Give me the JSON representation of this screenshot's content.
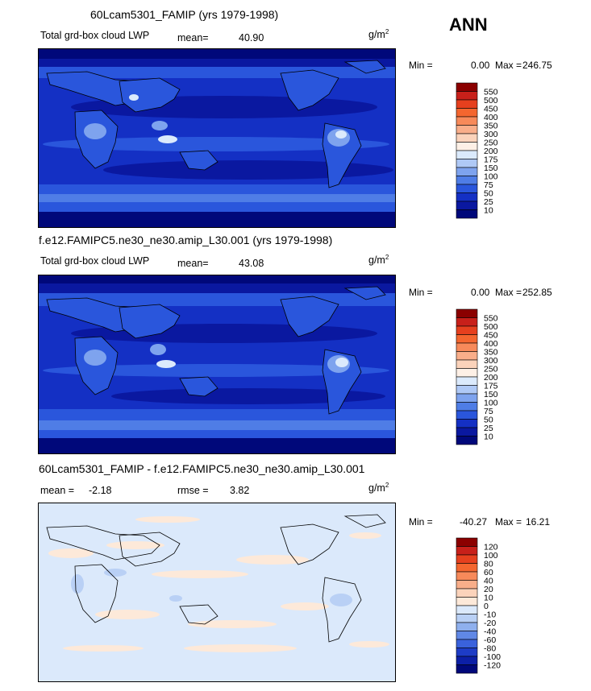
{
  "season": "ANN",
  "panels": [
    {
      "title": "60Lcam5301_FAMIP (yrs 1979-1998)",
      "variable": "Total grd-box cloud LWP",
      "mean_label": "mean=",
      "mean": "40.90",
      "units_base": "g/m",
      "units_exp": "2",
      "min_label": "Min =",
      "min": "0.00",
      "max_label": "Max =",
      "max": "246.75",
      "levels": [
        "550",
        "500",
        "450",
        "400",
        "350",
        "300",
        "250",
        "200",
        "175",
        "150",
        "100",
        "75",
        "50",
        "25",
        "10"
      ],
      "colors": [
        "#8b0000",
        "#c8201a",
        "#e6401e",
        "#f4662f",
        "#f78a5a",
        "#f9ae8a",
        "#fbd3bb",
        "#fdf0e6",
        "#dbeafc",
        "#afc9f6",
        "#7ea3ee",
        "#4f7de6",
        "#2a56dc",
        "#1430c4",
        "#0a18a0",
        "#00087a"
      ]
    },
    {
      "title": "f.e12.FAMIPC5.ne30_ne30.amip_L30.001 (yrs 1979-1998)",
      "variable": "Total grd-box cloud LWP",
      "mean_label": "mean=",
      "mean": "43.08",
      "units_base": "g/m",
      "units_exp": "2",
      "min_label": "Min =",
      "min": "0.00",
      "max_label": "Max =",
      "max": "252.85",
      "levels": [
        "550",
        "500",
        "450",
        "400",
        "350",
        "300",
        "250",
        "200",
        "175",
        "150",
        "100",
        "75",
        "50",
        "25",
        "10"
      ],
      "colors": [
        "#8b0000",
        "#c8201a",
        "#e6401e",
        "#f4662f",
        "#f78a5a",
        "#f9ae8a",
        "#fbd3bb",
        "#fdf0e6",
        "#dbeafc",
        "#afc9f6",
        "#7ea3ee",
        "#4f7de6",
        "#2a56dc",
        "#1430c4",
        "#0a18a0",
        "#00087a"
      ]
    },
    {
      "title": "60Lcam5301_FAMIP - f.e12.FAMIPC5.ne30_ne30.amip_L30.001",
      "mean_label": "mean =",
      "mean": "-2.18",
      "rmse_label": "rmse =",
      "rmse": "3.82",
      "units_base": "g/m",
      "units_exp": "2",
      "min_label": "Min =",
      "min": "-40.27",
      "max_label": "Max =",
      "max": "16.21",
      "levels": [
        "120",
        "100",
        "80",
        "60",
        "40",
        "20",
        "10",
        "0",
        "-10",
        "-20",
        "-40",
        "-60",
        "-80",
        "-100",
        "-120"
      ],
      "colors": [
        "#8b0000",
        "#c8201a",
        "#e6401e",
        "#f4662f",
        "#f78a5a",
        "#f9ae8a",
        "#fbd3bb",
        "#fde9d9",
        "#dbe9fb",
        "#b9d0f5",
        "#8fb0ee",
        "#6088e6",
        "#3a62dc",
        "#1d3cc6",
        "#0c1fa6",
        "#00087a"
      ]
    }
  ],
  "chart_data": [
    {
      "type": "heatmap",
      "title": "60Lcam5301_FAMIP (yrs 1979-1998)",
      "field": "Total grd-box cloud LWP",
      "units": "g/m2",
      "mean": 40.9,
      "min": 0.0,
      "max": 246.75,
      "contour_levels": [
        10,
        25,
        50,
        75,
        100,
        150,
        175,
        200,
        250,
        300,
        350,
        400,
        450,
        500,
        550
      ]
    },
    {
      "type": "heatmap",
      "title": "f.e12.FAMIPC5.ne30_ne30.amip_L30.001 (yrs 1979-1998)",
      "field": "Total grd-box cloud LWP",
      "units": "g/m2",
      "mean": 43.08,
      "min": 0.0,
      "max": 252.85,
      "contour_levels": [
        10,
        25,
        50,
        75,
        100,
        150,
        175,
        200,
        250,
        300,
        350,
        400,
        450,
        500,
        550
      ]
    },
    {
      "type": "heatmap",
      "title": "60Lcam5301_FAMIP - f.e12.FAMIPC5.ne30_ne30.amip_L30.001",
      "units": "g/m2",
      "mean": -2.18,
      "rmse": 3.82,
      "min": -40.27,
      "max": 16.21,
      "contour_levels": [
        -120,
        -100,
        -80,
        -60,
        -40,
        -20,
        -10,
        0,
        10,
        20,
        40,
        60,
        80,
        100,
        120
      ]
    }
  ]
}
